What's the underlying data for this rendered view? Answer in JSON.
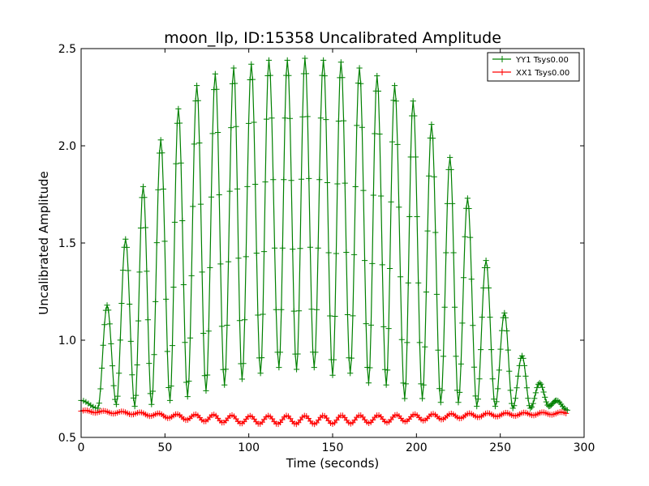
{
  "chart_data": {
    "type": "line",
    "title": "moon_llp, ID:15358 Uncalibrated Amplitude",
    "xlabel": "Time (seconds)",
    "ylabel": "Uncalibrated Amplitude",
    "xlim": [
      0,
      300
    ],
    "ylim": [
      0.5,
      2.5
    ],
    "xticks": [
      "0",
      "50",
      "100",
      "150",
      "200",
      "250",
      "300"
    ],
    "yticks": [
      "0.5",
      "1.0",
      "1.5",
      "2.0",
      "2.5"
    ],
    "grid": false,
    "legend_position": "top-right",
    "series": [
      {
        "name": "YY1 Tsys0.00",
        "color": "#008000",
        "marker": "+",
        "x_start": 0,
        "x_end": 290,
        "peaks": [
          {
            "x": 15.5,
            "y": 1.18
          },
          {
            "x": 26.5,
            "y": 1.52
          },
          {
            "x": 37,
            "y": 1.79
          },
          {
            "x": 47.5,
            "y": 2.03
          },
          {
            "x": 58,
            "y": 2.19
          },
          {
            "x": 69,
            "y": 2.31
          },
          {
            "x": 80,
            "y": 2.37
          },
          {
            "x": 91,
            "y": 2.4
          },
          {
            "x": 101.5,
            "y": 2.42
          },
          {
            "x": 112,
            "y": 2.44
          },
          {
            "x": 123,
            "y": 2.44
          },
          {
            "x": 133.5,
            "y": 2.45
          },
          {
            "x": 144.5,
            "y": 2.44
          },
          {
            "x": 155,
            "y": 2.43
          },
          {
            "x": 166,
            "y": 2.4
          },
          {
            "x": 176.5,
            "y": 2.36
          },
          {
            "x": 187,
            "y": 2.31
          },
          {
            "x": 198,
            "y": 2.23
          },
          {
            "x": 209,
            "y": 2.11
          },
          {
            "x": 220,
            "y": 1.94
          },
          {
            "x": 230.5,
            "y": 1.73
          },
          {
            "x": 241.5,
            "y": 1.41
          },
          {
            "x": 252.5,
            "y": 1.14
          },
          {
            "x": 263,
            "y": 0.92
          },
          {
            "x": 273.5,
            "y": 0.78
          },
          {
            "x": 283.5,
            "y": 0.69
          }
        ],
        "troughs": [
          {
            "x": 0,
            "y": 0.69
          },
          {
            "x": 10,
            "y": 0.65
          },
          {
            "x": 21,
            "y": 0.67
          },
          {
            "x": 32,
            "y": 0.66
          },
          {
            "x": 42,
            "y": 0.67
          },
          {
            "x": 53,
            "y": 0.69
          },
          {
            "x": 63.5,
            "y": 0.71
          },
          {
            "x": 74.5,
            "y": 0.74
          },
          {
            "x": 85.5,
            "y": 0.77
          },
          {
            "x": 96,
            "y": 0.8
          },
          {
            "x": 107,
            "y": 0.83
          },
          {
            "x": 118,
            "y": 0.86
          },
          {
            "x": 128.5,
            "y": 0.85
          },
          {
            "x": 139,
            "y": 0.86
          },
          {
            "x": 150,
            "y": 0.82
          },
          {
            "x": 160.5,
            "y": 0.83
          },
          {
            "x": 171.5,
            "y": 0.78
          },
          {
            "x": 182,
            "y": 0.77
          },
          {
            "x": 193,
            "y": 0.7
          },
          {
            "x": 203.5,
            "y": 0.7
          },
          {
            "x": 214.5,
            "y": 0.68
          },
          {
            "x": 225,
            "y": 0.68
          },
          {
            "x": 236,
            "y": 0.66
          },
          {
            "x": 247,
            "y": 0.66
          },
          {
            "x": 257.5,
            "y": 0.65
          },
          {
            "x": 268,
            "y": 0.65
          },
          {
            "x": 279,
            "y": 0.66
          },
          {
            "x": 290,
            "y": 0.64
          }
        ]
      },
      {
        "name": "XX1 Tsys0.00",
        "color": "#ff0000",
        "marker": "+",
        "x_start": 0,
        "x_end": 290,
        "baseline_points": [
          {
            "x": 0,
            "y": 0.635
          },
          {
            "x": 30,
            "y": 0.625
          },
          {
            "x": 60,
            "y": 0.605
          },
          {
            "x": 100,
            "y": 0.59
          },
          {
            "x": 140,
            "y": 0.59
          },
          {
            "x": 180,
            "y": 0.595
          },
          {
            "x": 210,
            "y": 0.605
          },
          {
            "x": 240,
            "y": 0.615
          },
          {
            "x": 290,
            "y": 0.625
          }
        ],
        "oscillation_period": 10.9,
        "amplitude_points": [
          {
            "x": 0,
            "y": 0.005
          },
          {
            "x": 40,
            "y": 0.008
          },
          {
            "x": 80,
            "y": 0.02
          },
          {
            "x": 120,
            "y": 0.022
          },
          {
            "x": 160,
            "y": 0.022
          },
          {
            "x": 200,
            "y": 0.018
          },
          {
            "x": 240,
            "y": 0.01
          },
          {
            "x": 290,
            "y": 0.006
          }
        ]
      }
    ]
  }
}
